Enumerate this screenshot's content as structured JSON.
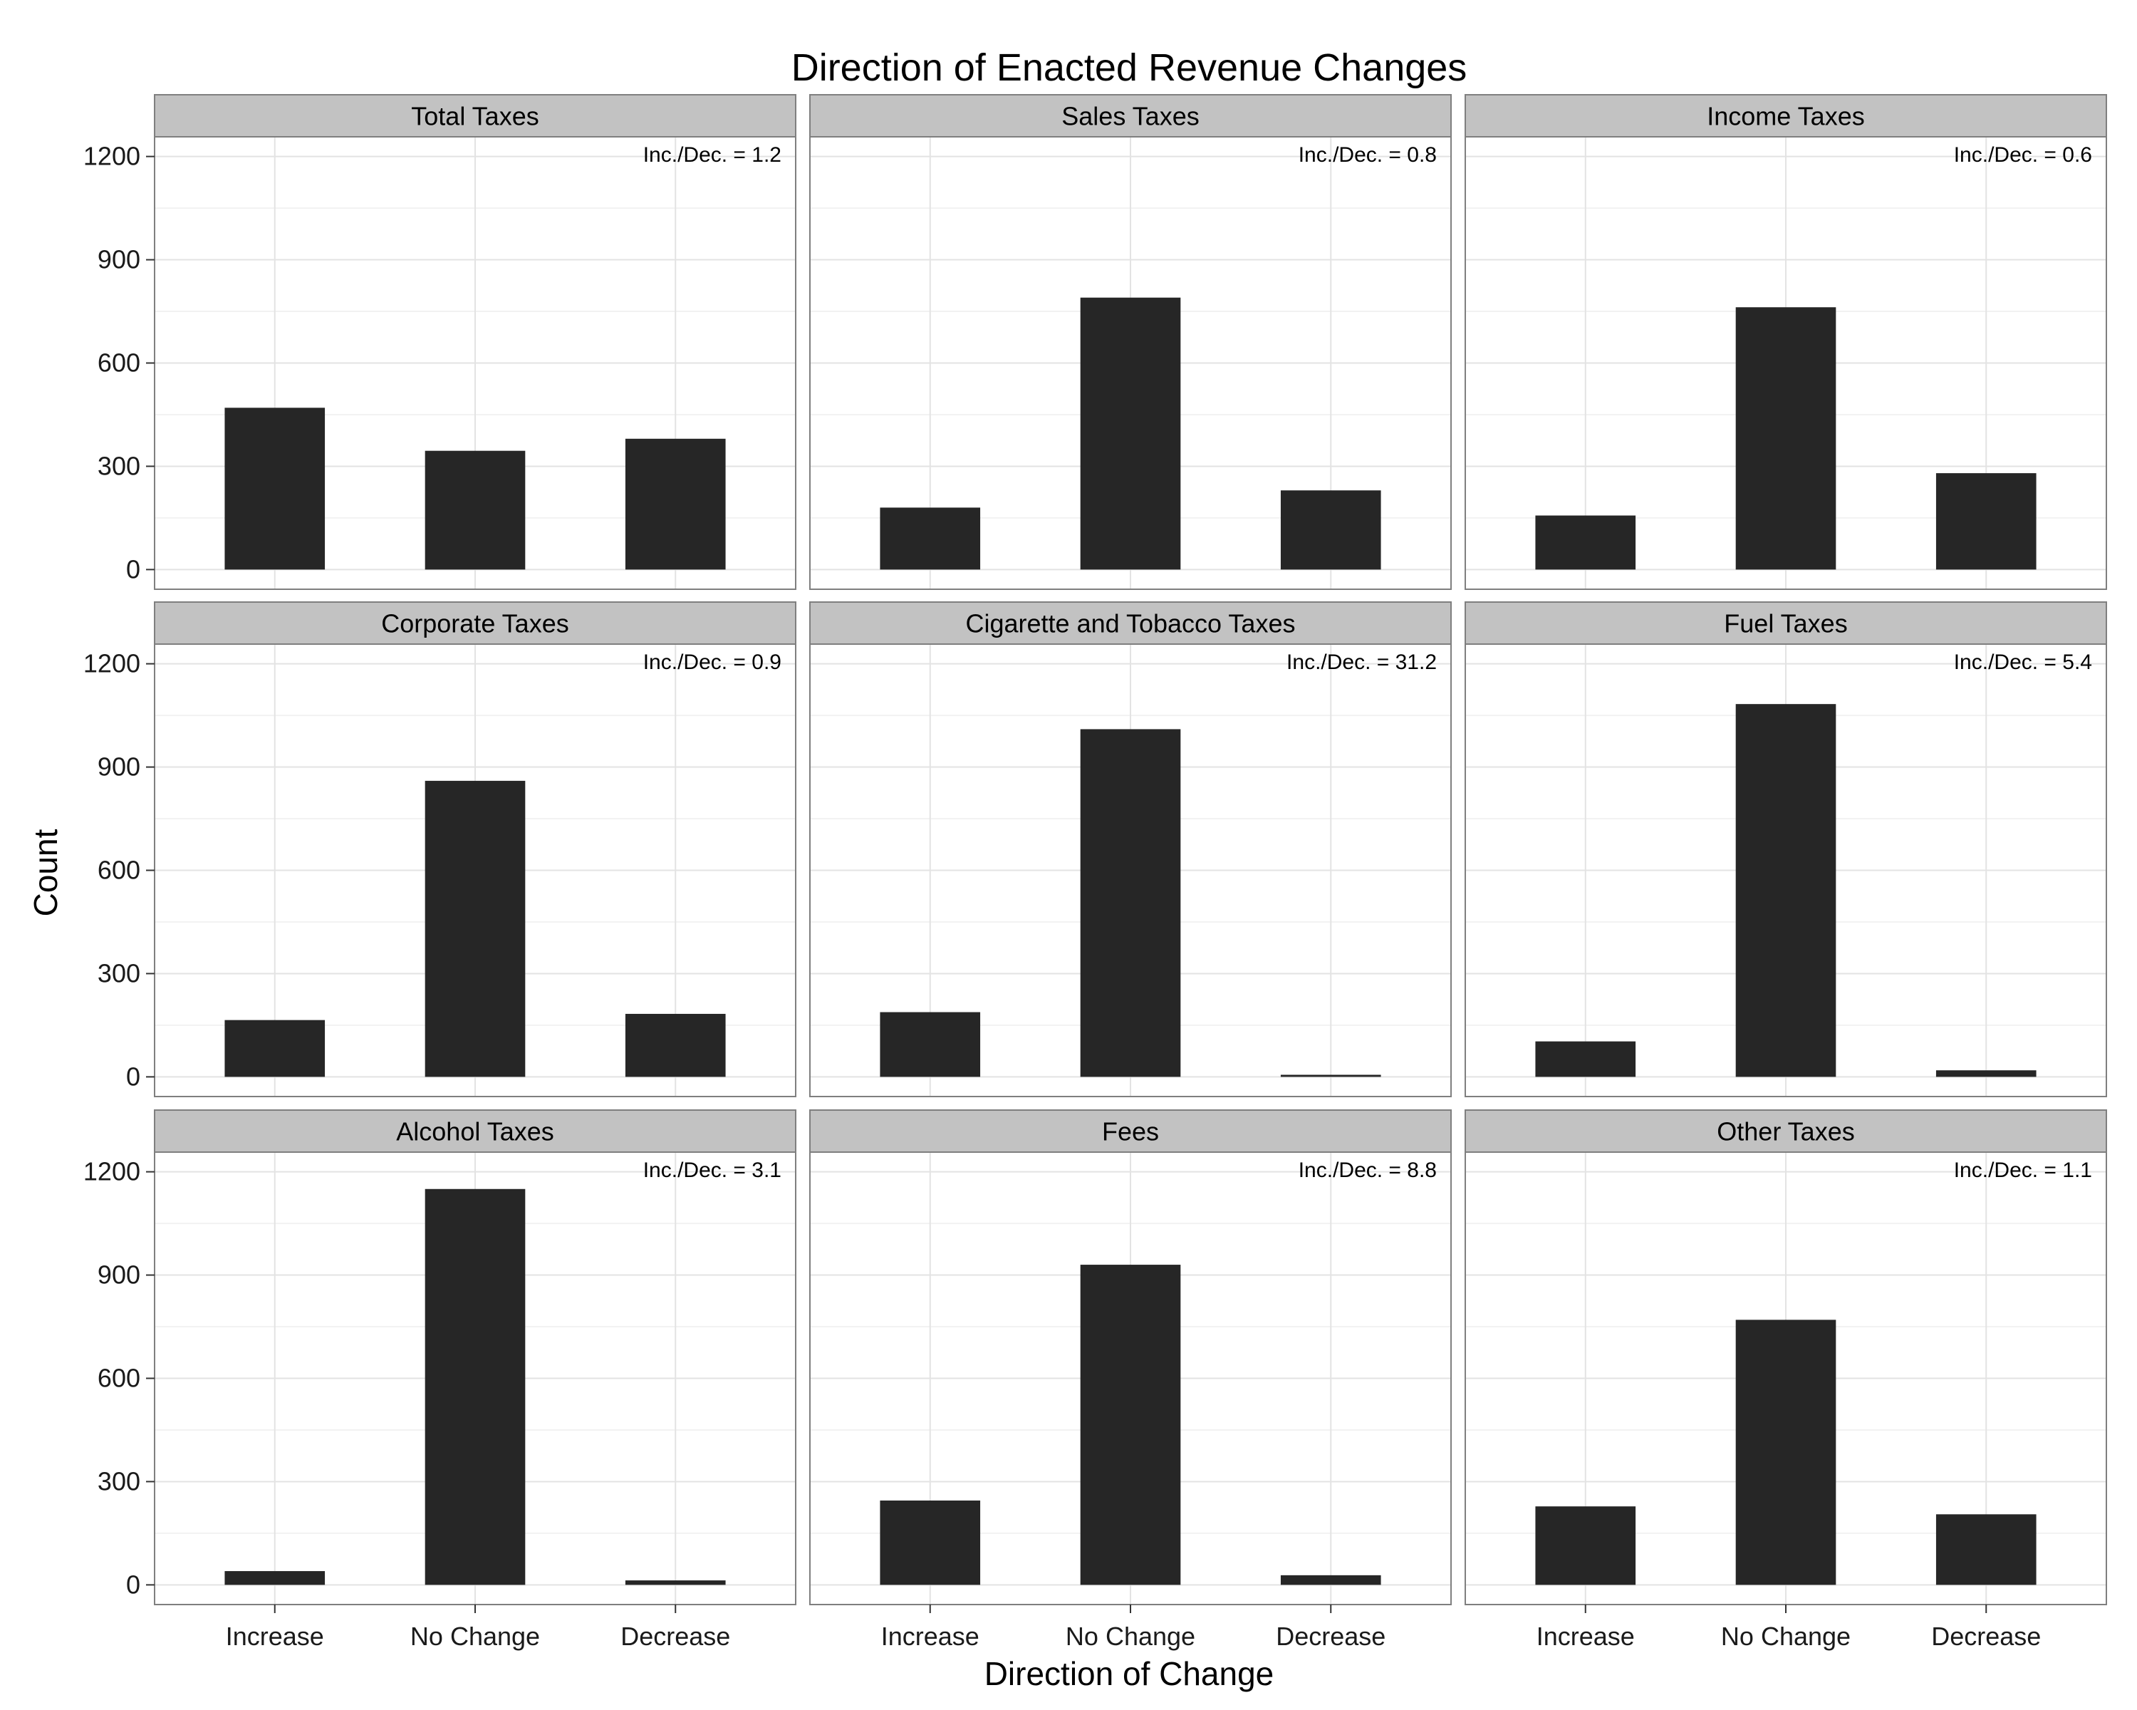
{
  "chart_data": {
    "type": "bar",
    "title": "Direction of Enacted Revenue Changes",
    "xlabel": "Direction of Change",
    "ylabel": "Count",
    "categories": [
      "Increase",
      "No Change",
      "Decrease"
    ],
    "ylim": [
      0,
      1200
    ],
    "yticks": [
      0,
      300,
      600,
      900,
      1200
    ],
    "yticklabels": [
      "0",
      "300",
      "600",
      "900",
      "1200"
    ],
    "grid": true,
    "bar_color": "#262626",
    "panels": [
      {
        "name": "Total Taxes",
        "annotation": "Inc./Dec. = 1.2",
        "values": [
          470,
          345,
          380
        ]
      },
      {
        "name": "Sales Taxes",
        "annotation": "Inc./Dec. = 0.8",
        "values": [
          180,
          790,
          230
        ]
      },
      {
        "name": "Income Taxes",
        "annotation": "Inc./Dec. = 0.6",
        "values": [
          157,
          762,
          280
        ]
      },
      {
        "name": "Corporate Taxes",
        "annotation": "Inc./Dec. = 0.9",
        "values": [
          165,
          860,
          183
        ]
      },
      {
        "name": "Cigarette and Tobacco Taxes",
        "annotation": "Inc./Dec. = 31.2",
        "values": [
          188,
          1010,
          6
        ]
      },
      {
        "name": "Fuel Taxes",
        "annotation": "Inc./Dec. = 5.4",
        "values": [
          103,
          1083,
          19
        ]
      },
      {
        "name": "Alcohol Taxes",
        "annotation": "Inc./Dec. = 3.1",
        "values": [
          40,
          1150,
          13
        ]
      },
      {
        "name": "Fees",
        "annotation": "Inc./Dec. = 8.8",
        "values": [
          245,
          930,
          28
        ]
      },
      {
        "name": "Other Taxes",
        "annotation": "Inc./Dec. = 1.1",
        "values": [
          228,
          770,
          205
        ]
      }
    ]
  }
}
